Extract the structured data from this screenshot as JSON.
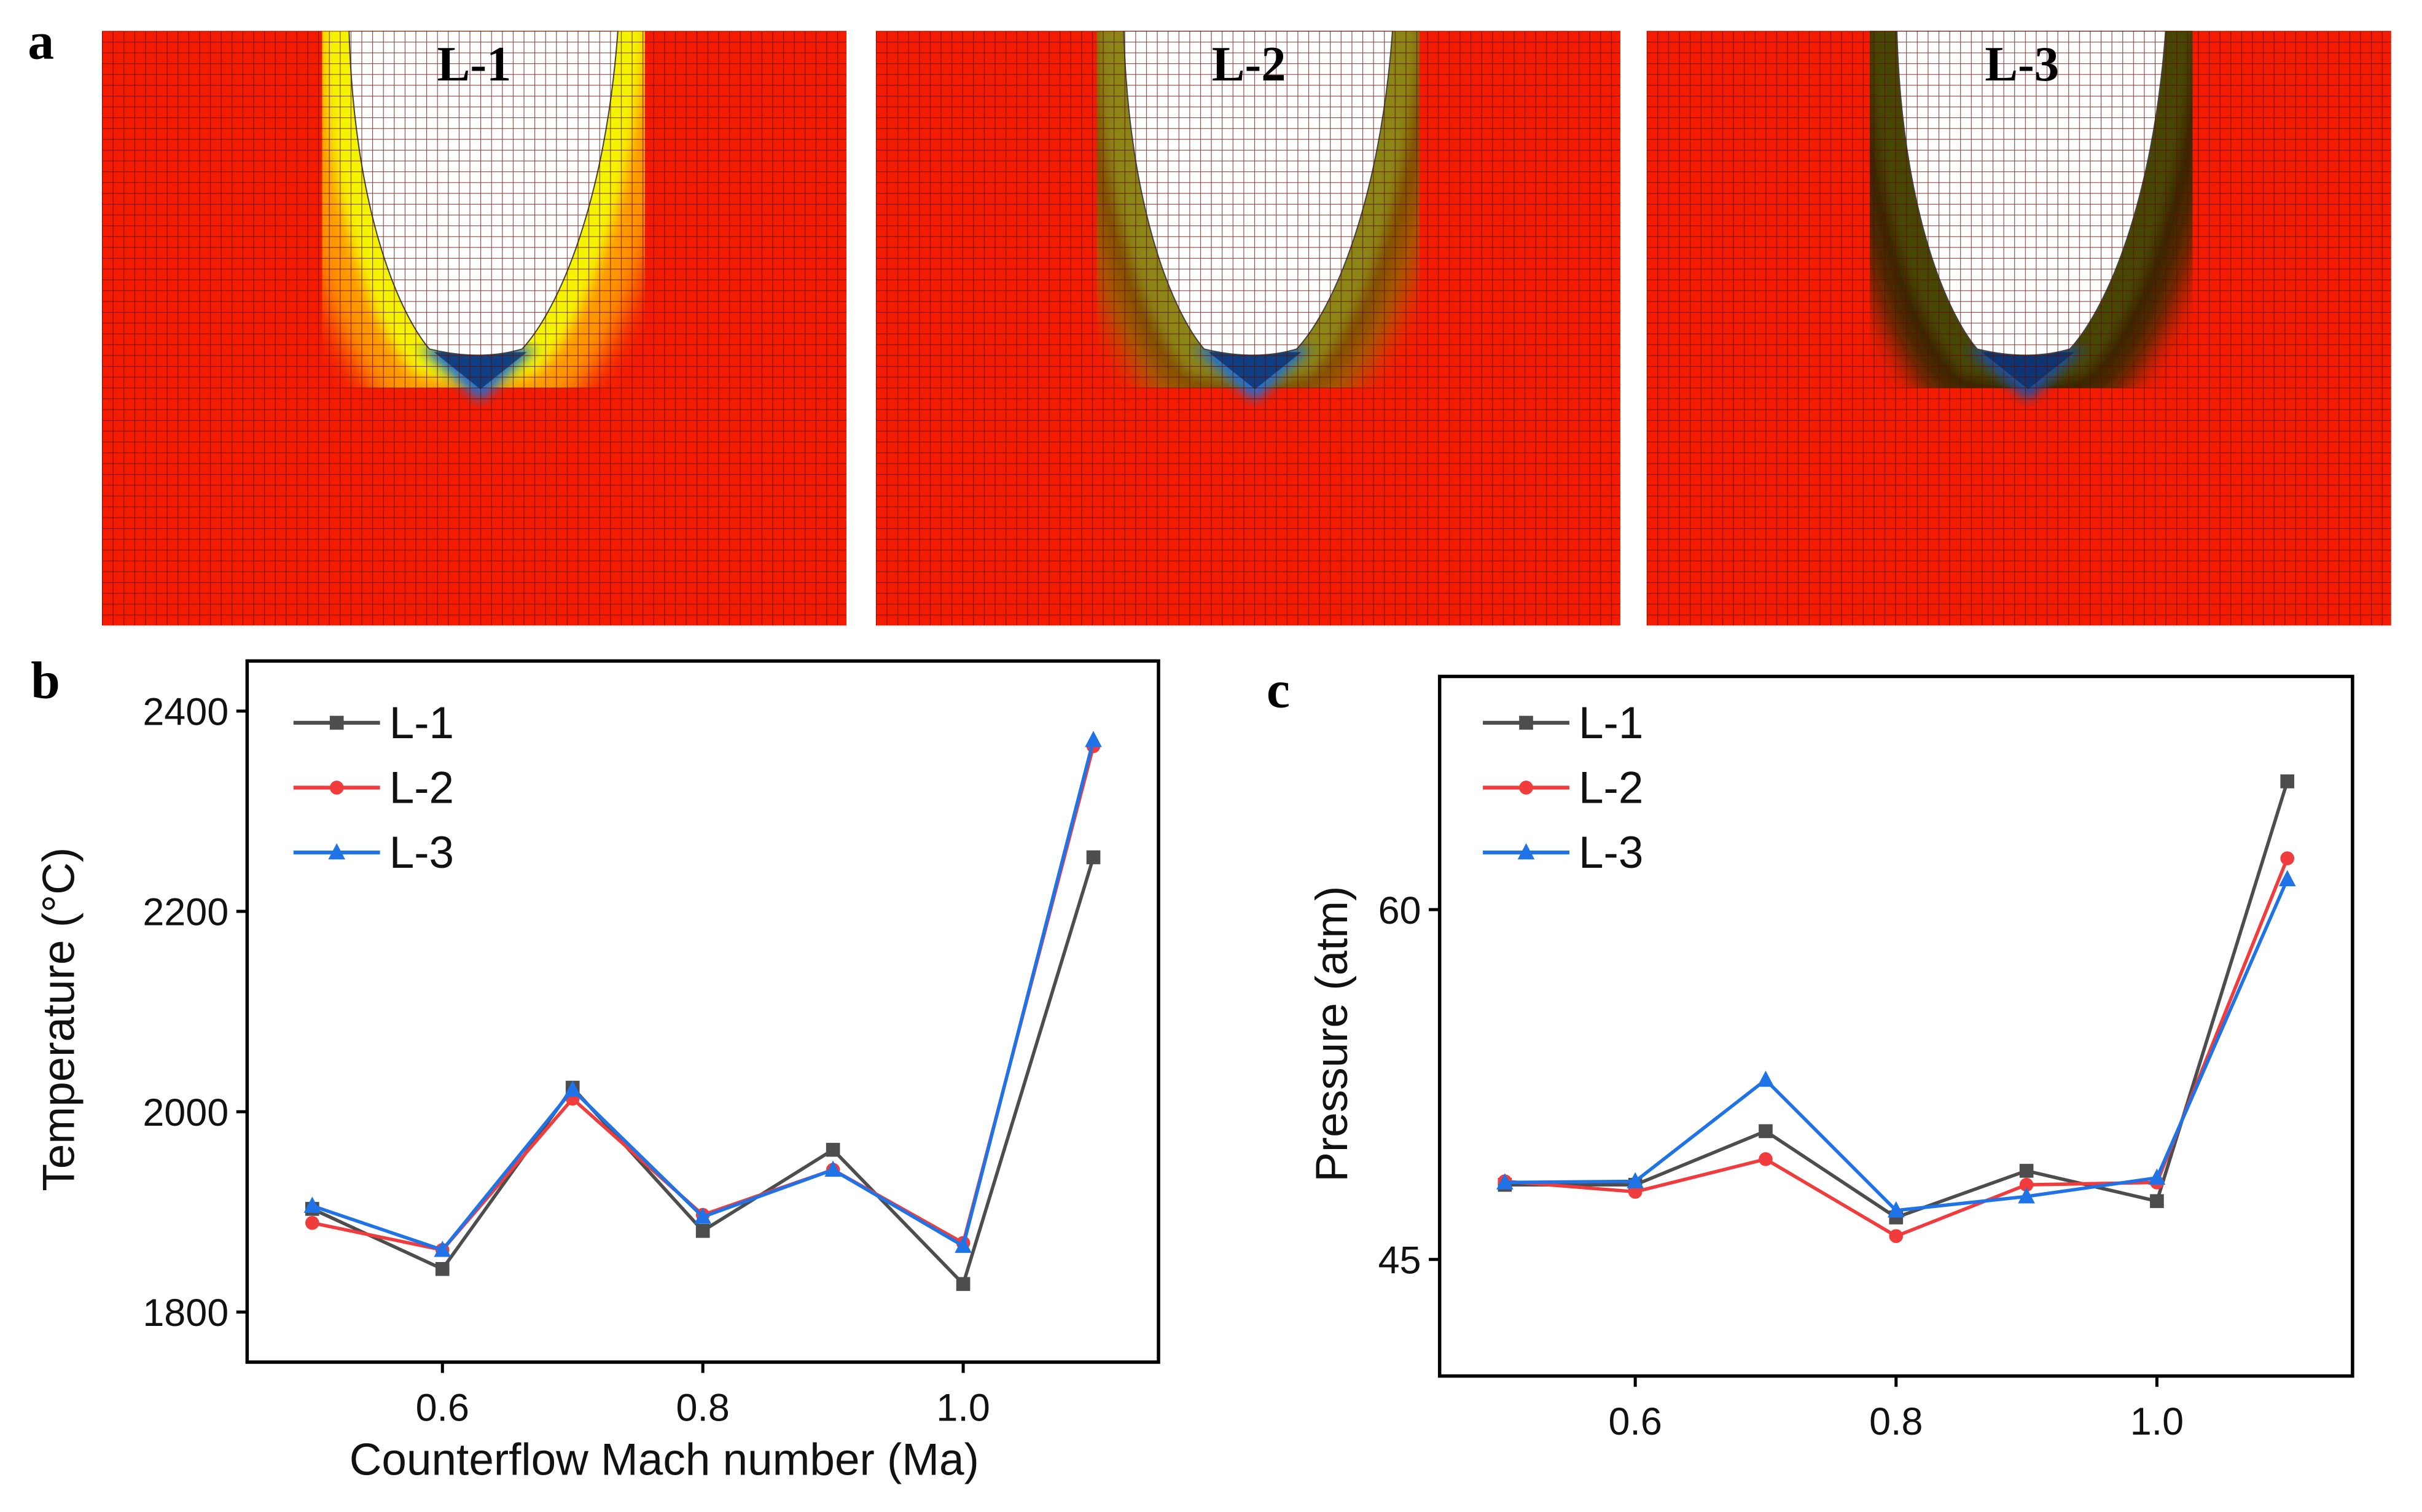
{
  "panel_a": {
    "label": "a",
    "panels": [
      {
        "title": "L-1"
      },
      {
        "title": "L-2"
      },
      {
        "title": "L-3"
      }
    ]
  },
  "chart_data": [
    {
      "panel_label": "b",
      "type": "line",
      "xlabel": "Counterflow Mach number (Ma)",
      "ylabel": "Temperature (°C)",
      "xlim": [
        0.45,
        1.15
      ],
      "ylim": [
        1750,
        2450
      ],
      "xticks": [
        0.6,
        0.8,
        1.0
      ],
      "xtick_labels": [
        "0.6",
        "0.8",
        "1.0"
      ],
      "yticks": [
        1800,
        2000,
        2200,
        2400
      ],
      "ytick_labels": [
        "1800",
        "2000",
        "2200",
        "2400"
      ],
      "grid": false,
      "legend": "top-left",
      "x": [
        0.5,
        0.6,
        0.7,
        0.8,
        0.9,
        1.0,
        1.1
      ],
      "series": [
        {
          "name": "L-1",
          "color": "#4d4d4d",
          "marker": "square",
          "values": [
            1903,
            1843,
            2024,
            1881,
            1962,
            1828,
            2254
          ]
        },
        {
          "name": "L-2",
          "color": "#f03c3c",
          "marker": "circle",
          "values": [
            1889,
            1862,
            2013,
            1897,
            1942,
            1869,
            2365
          ]
        },
        {
          "name": "L-3",
          "color": "#1f73e6",
          "marker": "triangle",
          "values": [
            1906,
            1862,
            2022,
            1895,
            1942,
            1866,
            2371
          ]
        }
      ]
    },
    {
      "panel_label": "c",
      "type": "line",
      "xlabel": "",
      "ylabel": "Pressure (atm)",
      "xlim": [
        0.45,
        1.15
      ],
      "ylim": [
        40,
        70
      ],
      "xticks": [
        0.6,
        0.8,
        1.0
      ],
      "xtick_labels": [
        "0.6",
        "0.8",
        "1.0"
      ],
      "yticks": [
        45,
        60
      ],
      "ytick_labels": [
        "45",
        "60"
      ],
      "grid": false,
      "legend": "top-left",
      "x": [
        0.5,
        0.6,
        0.7,
        0.8,
        0.9,
        1.0,
        1.1
      ],
      "series": [
        {
          "name": "L-1",
          "color": "#4d4d4d",
          "marker": "square",
          "values": [
            48.2,
            48.2,
            50.5,
            46.8,
            48.8,
            47.5,
            65.5
          ]
        },
        {
          "name": "L-2",
          "color": "#f03c3c",
          "marker": "circle",
          "values": [
            48.35,
            47.9,
            49.3,
            46.0,
            48.2,
            48.3,
            62.2
          ]
        },
        {
          "name": "L-3",
          "color": "#1f73e6",
          "marker": "triangle",
          "values": [
            48.3,
            48.35,
            52.7,
            47.1,
            47.7,
            48.5,
            61.3
          ]
        }
      ]
    }
  ]
}
